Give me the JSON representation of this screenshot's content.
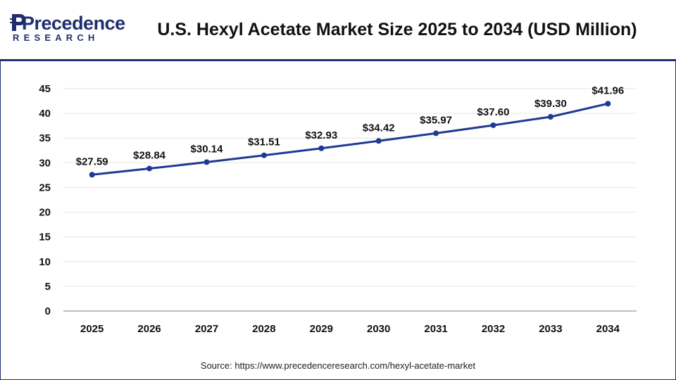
{
  "header": {
    "logo_word": "Precedence",
    "logo_sub": "RESEARCH",
    "title": "U.S. Hexyl Acetate Market Size 2025 to 2034 (USD Million)"
  },
  "footer": {
    "source": "Source: https://www.precedenceresearch.com/hexyl-acetate-market"
  },
  "colors": {
    "brand": "#1f2f6e",
    "series_line": "#1f3a93",
    "grid": "#e6e6e6"
  },
  "chart_data": {
    "type": "line",
    "title": "U.S. Hexyl Acetate Market Size 2025 to 2034 (USD Million)",
    "xlabel": "",
    "ylabel": "",
    "categories": [
      "2025",
      "2026",
      "2027",
      "2028",
      "2029",
      "2030",
      "2031",
      "2032",
      "2033",
      "2034"
    ],
    "values": [
      27.59,
      28.84,
      30.14,
      31.51,
      32.93,
      34.42,
      35.97,
      37.6,
      39.3,
      41.96
    ],
    "data_labels": [
      "$27.59",
      "$28.84",
      "$30.14",
      "$31.51",
      "$32.93",
      "$34.42",
      "$35.97",
      "$37.60",
      "$39.30",
      "$41.96"
    ],
    "ylim": [
      0,
      45
    ],
    "yticks": [
      0,
      5,
      10,
      15,
      20,
      25,
      30,
      35,
      40,
      45
    ],
    "grid": true,
    "legend": "none"
  }
}
